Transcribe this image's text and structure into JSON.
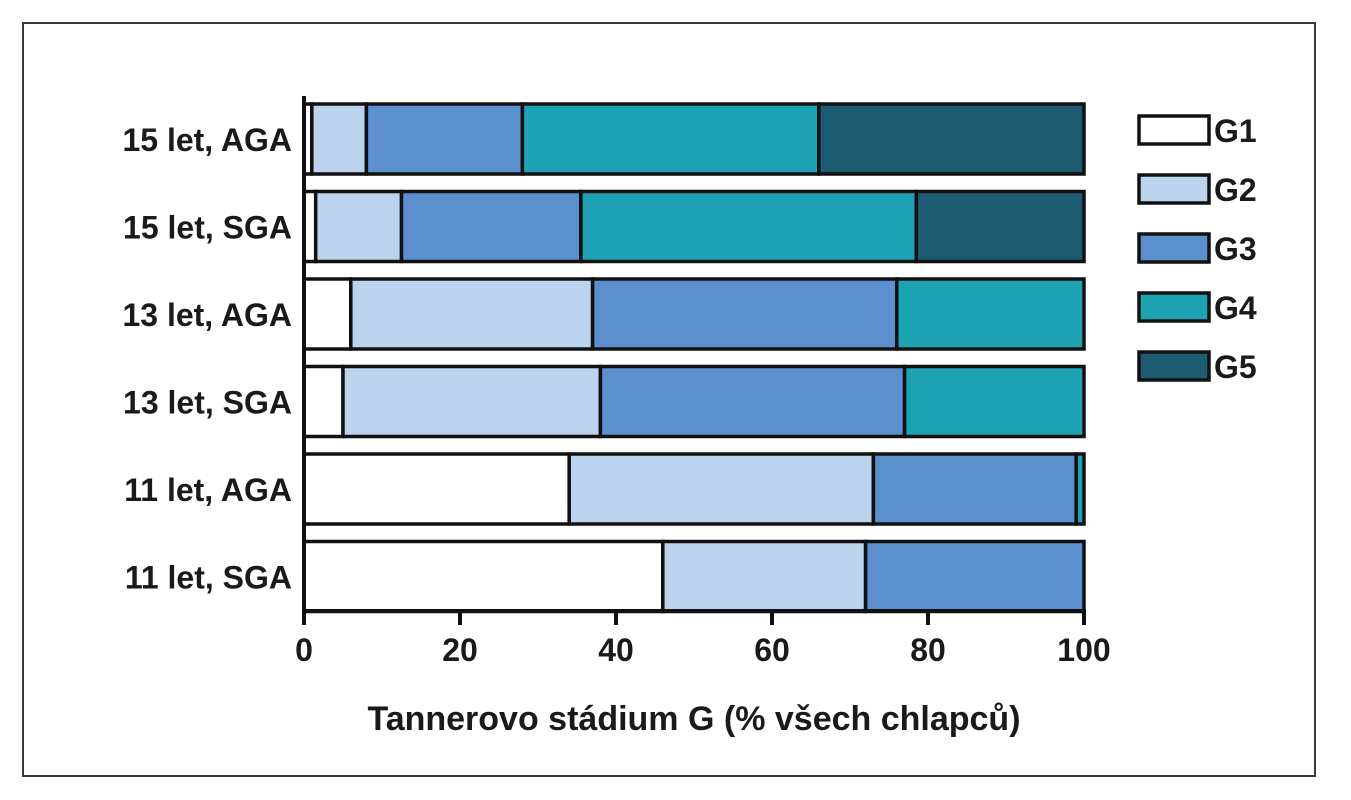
{
  "chart_data": {
    "type": "bar",
    "orientation": "horizontal",
    "stacked": true,
    "categories": [
      "15 let, AGA",
      "15 let, SGA",
      "13 let, AGA",
      "13 let, SGA",
      "11 let, AGA",
      "11 let, SGA"
    ],
    "series": [
      {
        "name": "G1",
        "color": "#ffffff",
        "values": [
          1,
          1.5,
          6,
          5,
          34,
          46
        ]
      },
      {
        "name": "G2",
        "color": "#bcd3ee",
        "values": [
          7,
          11,
          31,
          33,
          39,
          26
        ]
      },
      {
        "name": "G3",
        "color": "#5b8fce",
        "values": [
          20,
          23,
          39,
          39,
          26,
          28
        ]
      },
      {
        "name": "G4",
        "color": "#1ea3b5",
        "values": [
          38,
          43,
          24,
          23,
          1,
          0
        ]
      },
      {
        "name": "G5",
        "color": "#1d5b73",
        "values": [
          34,
          21.5,
          0,
          0,
          0,
          0
        ]
      }
    ],
    "xlabel": "Tannerovo stádium G (% všech chlapců)",
    "xlim": [
      0,
      100
    ],
    "xticks": [
      "0",
      "20",
      "40",
      "60",
      "80",
      "100"
    ],
    "legend_position": "right",
    "grid": false
  }
}
